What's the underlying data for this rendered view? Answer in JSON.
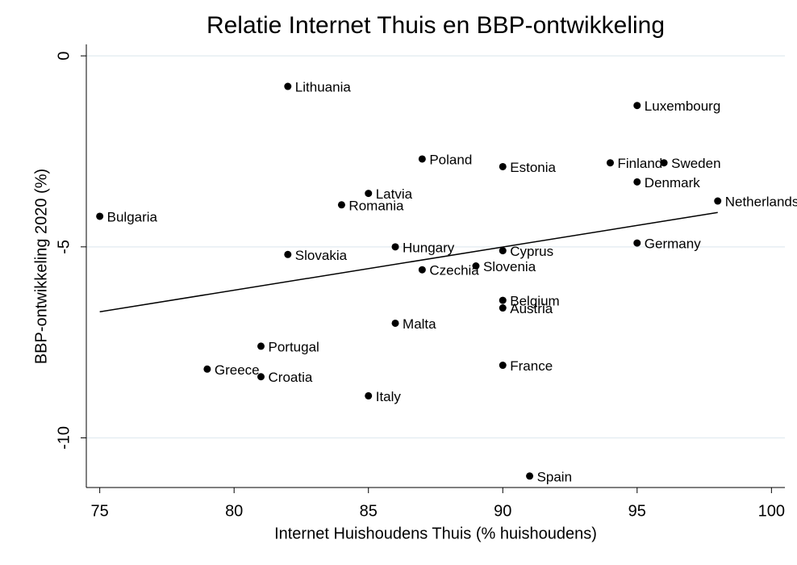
{
  "chart_data": {
    "type": "scatter",
    "title": "Relatie Internet Thuis en BBP-ontwikkeling",
    "x_label": "Internet Huishoudens Thuis (% huishoudens)",
    "y_label": "BBP-ontwikkeling 2020 (%)",
    "labels": [
      "Lithuania",
      "Luxembourg",
      "Poland",
      "Estonia",
      "Finland",
      "Sweden",
      "Denmark",
      "Latvia",
      "Romania",
      "Netherlands",
      "Bulgaria",
      "Hungary",
      "Cyprus",
      "Germany",
      "Slovakia",
      "Slovenia",
      "Czechia",
      "Belgium",
      "Austria",
      "Malta",
      "Portugal",
      "Greece",
      "Croatia",
      "France",
      "Italy",
      "Spain"
    ],
    "x": [
      82,
      95,
      87,
      90,
      94,
      96,
      95,
      85,
      84,
      98,
      75,
      86,
      90,
      95,
      82,
      89,
      87,
      90,
      90,
      86,
      81,
      79,
      81,
      90,
      85,
      91
    ],
    "values": [
      -0.8,
      -1.3,
      -2.7,
      -2.9,
      -2.8,
      -2.8,
      -3.3,
      -3.6,
      -3.9,
      -3.8,
      -4.2,
      -5.0,
      -5.1,
      -4.9,
      -5.2,
      -5.5,
      -5.6,
      -6.4,
      -6.6,
      -7.0,
      -7.6,
      -8.2,
      -8.4,
      -8.1,
      -8.9,
      -11.0
    ],
    "color": "#000000",
    "fit": {
      "x": [
        75,
        98
      ],
      "values": [
        -6.7,
        -4.1
      ]
    },
    "xlim": [
      74.5,
      100.5
    ],
    "xticks": [
      75,
      80,
      85,
      90,
      95,
      100
    ],
    "ylim": [
      -11.3,
      0.3
    ],
    "yticks": [
      0,
      -5,
      -10
    ],
    "grid": true
  }
}
